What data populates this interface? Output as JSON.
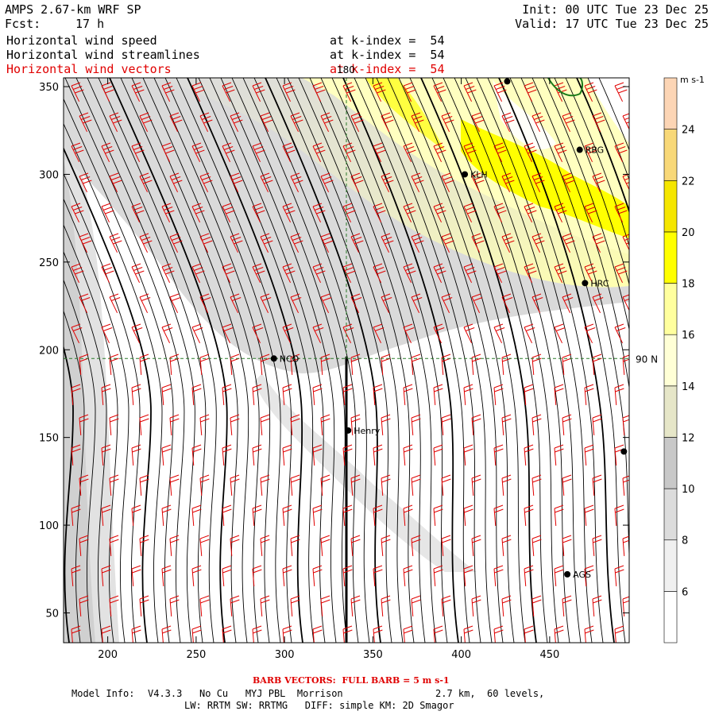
{
  "header": {
    "title": "AMPS 2.67-km WRF SP",
    "fcst_label": "Fcst:",
    "fcst_value": "17 h",
    "init": "Init: 00 UTC Tue 23 Dec 25",
    "valid": "Valid: 17 UTC Tue 23 Dec 25"
  },
  "fields": [
    {
      "name": "Horizontal wind speed",
      "level": "at k-index =  54",
      "color": "#000000"
    },
    {
      "name": "Horizontal wind streamlines",
      "level": "at k-index =  54",
      "color": "#000000"
    },
    {
      "name": "Horizontal wind vectors",
      "level": "at k-index =  54",
      "color": "#e00000"
    }
  ],
  "axes": {
    "x_ticks": [
      "200",
      "250",
      "300",
      "350",
      "400",
      "450"
    ],
    "y_ticks": [
      "50",
      "100",
      "150",
      "200",
      "250",
      "300",
      "350"
    ],
    "x_range": [
      175,
      495
    ],
    "y_range": [
      33,
      355
    ]
  },
  "grid_lines": {
    "meridian_label": "180",
    "parallel_label": "90 N",
    "meridian_x": 335,
    "parallel_y": 195
  },
  "stations": [
    {
      "name": "NCO",
      "x": 294,
      "y": 195
    },
    {
      "name": "Henry",
      "x": 336,
      "y": 154
    },
    {
      "name": "KLH",
      "x": 402,
      "y": 300
    },
    {
      "name": "RBG",
      "x": 467,
      "y": 314
    },
    {
      "name": "HRC",
      "x": 470,
      "y": 238
    },
    {
      "name": "AGS",
      "x": 460,
      "y": 72
    },
    {
      "name": "",
      "x": 426,
      "y": 353
    },
    {
      "name": "",
      "x": 492,
      "y": 142
    }
  ],
  "colorbar": {
    "unit": "m s-1",
    "ticks": [
      "6",
      "8",
      "10",
      "12",
      "14",
      "16",
      "18",
      "20",
      "22",
      "24"
    ],
    "colors": [
      "#ffffff",
      "#f0f0f0",
      "#dcdcdc",
      "#c8c8c8",
      "#e6e6c8",
      "#ffffd6",
      "#ffff9e",
      "#ffff00",
      "#f5e600",
      "#f8d878",
      "#fcd5b5"
    ]
  },
  "footer": {
    "barb_note": "BARB VECTORS:  FULL BARB = 5 m s-1",
    "model_info_label": "Model Info:",
    "model_info": "V4.3.3   No Cu   MYJ PBL  Morrison",
    "grid_info": "2.7 km,  60 levels,",
    "physics": "LW: RRTM SW: RRTMG   DIFF: simple KM: 2D Smagor"
  }
}
